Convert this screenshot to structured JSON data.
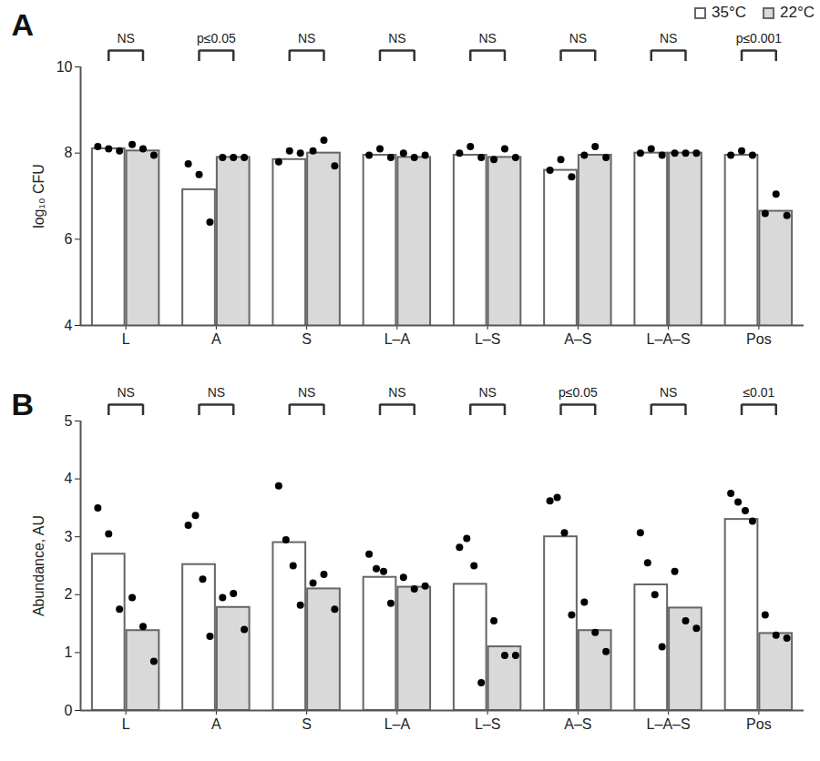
{
  "chart_data": [
    {
      "type": "bar",
      "title": "A",
      "y_label": "log₁₀ CFU",
      "categories": [
        "L",
        "A",
        "S",
        "L–A",
        "L–S",
        "A–S",
        "L–A–S",
        "Pos"
      ],
      "ylim": [
        4,
        10
      ],
      "yticks": [
        4,
        6,
        8,
        10
      ],
      "legend": "top-right",
      "annotations": [
        "NS",
        "p≤0.05",
        "NS",
        "NS",
        "NS",
        "NS",
        "NS",
        "p≤0.001"
      ],
      "series": [
        {
          "name": "35°C",
          "color": "#ffffff",
          "values": [
            8.1,
            7.15,
            7.85,
            7.95,
            7.95,
            7.6,
            8.0,
            7.95
          ],
          "points": [
            [
              8.15,
              8.1,
              8.05
            ],
            [
              7.75,
              7.5,
              6.4
            ],
            [
              7.8,
              8.05,
              8.0
            ],
            [
              7.95,
              8.1,
              7.9
            ],
            [
              8.0,
              8.15,
              7.9
            ],
            [
              7.6,
              7.85,
              7.45
            ],
            [
              8.0,
              8.1,
              7.95
            ],
            [
              7.95,
              8.05,
              7.95
            ]
          ]
        },
        {
          "name": "22°C",
          "color": "#d9d9d9",
          "values": [
            8.05,
            7.9,
            8.0,
            7.9,
            7.9,
            7.95,
            8.0,
            6.65
          ],
          "points": [
            [
              8.2,
              8.1,
              7.95
            ],
            [
              7.9,
              7.9,
              7.9
            ],
            [
              8.05,
              8.3,
              7.7
            ],
            [
              8.0,
              7.9,
              7.95
            ],
            [
              7.85,
              8.1,
              7.9
            ],
            [
              7.95,
              8.15,
              7.9
            ],
            [
              8.0,
              8.0,
              8.0
            ],
            [
              6.6,
              7.05,
              6.55
            ]
          ]
        }
      ]
    },
    {
      "type": "bar",
      "title": "B",
      "y_label": "Abundance, AU",
      "categories": [
        "L",
        "A",
        "S",
        "L–A",
        "L–S",
        "A–S",
        "L–A–S",
        "Pos"
      ],
      "ylim": [
        0,
        5
      ],
      "yticks": [
        0,
        1,
        2,
        3,
        4,
        5
      ],
      "annotations": [
        "NS",
        "NS",
        "NS",
        "NS",
        "NS",
        "p≤0.05",
        "NS",
        "≤0.01"
      ],
      "series": [
        {
          "name": "35°C",
          "color": "#ffffff",
          "values": [
            2.7,
            2.52,
            2.9,
            2.3,
            2.18,
            3.0,
            2.17,
            3.3
          ],
          "points": [
            [
              3.5,
              3.05,
              1.75
            ],
            [
              3.2,
              3.37,
              2.27,
              1.28
            ],
            [
              3.88,
              2.95,
              2.5,
              1.82
            ],
            [
              2.7,
              2.45,
              2.4,
              1.85
            ],
            [
              2.82,
              2.97,
              2.5,
              0.48
            ],
            [
              3.62,
              3.68,
              3.07,
              1.65
            ],
            [
              3.07,
              2.55,
              2.0,
              1.1
            ],
            [
              3.75,
              3.6,
              3.45,
              3.27
            ]
          ]
        },
        {
          "name": "22°C",
          "color": "#d9d9d9",
          "values": [
            1.38,
            1.78,
            2.1,
            2.13,
            1.1,
            1.38,
            1.77,
            1.33
          ],
          "points": [
            [
              1.95,
              1.45,
              0.85
            ],
            [
              1.95,
              2.02,
              1.4
            ],
            [
              2.2,
              2.35,
              1.75
            ],
            [
              2.3,
              2.1,
              2.15
            ],
            [
              1.55,
              0.95,
              0.95
            ],
            [
              1.87,
              1.35,
              1.02
            ],
            [
              2.4,
              1.55,
              1.42
            ],
            [
              1.65,
              1.3,
              1.25
            ]
          ]
        }
      ]
    }
  ]
}
